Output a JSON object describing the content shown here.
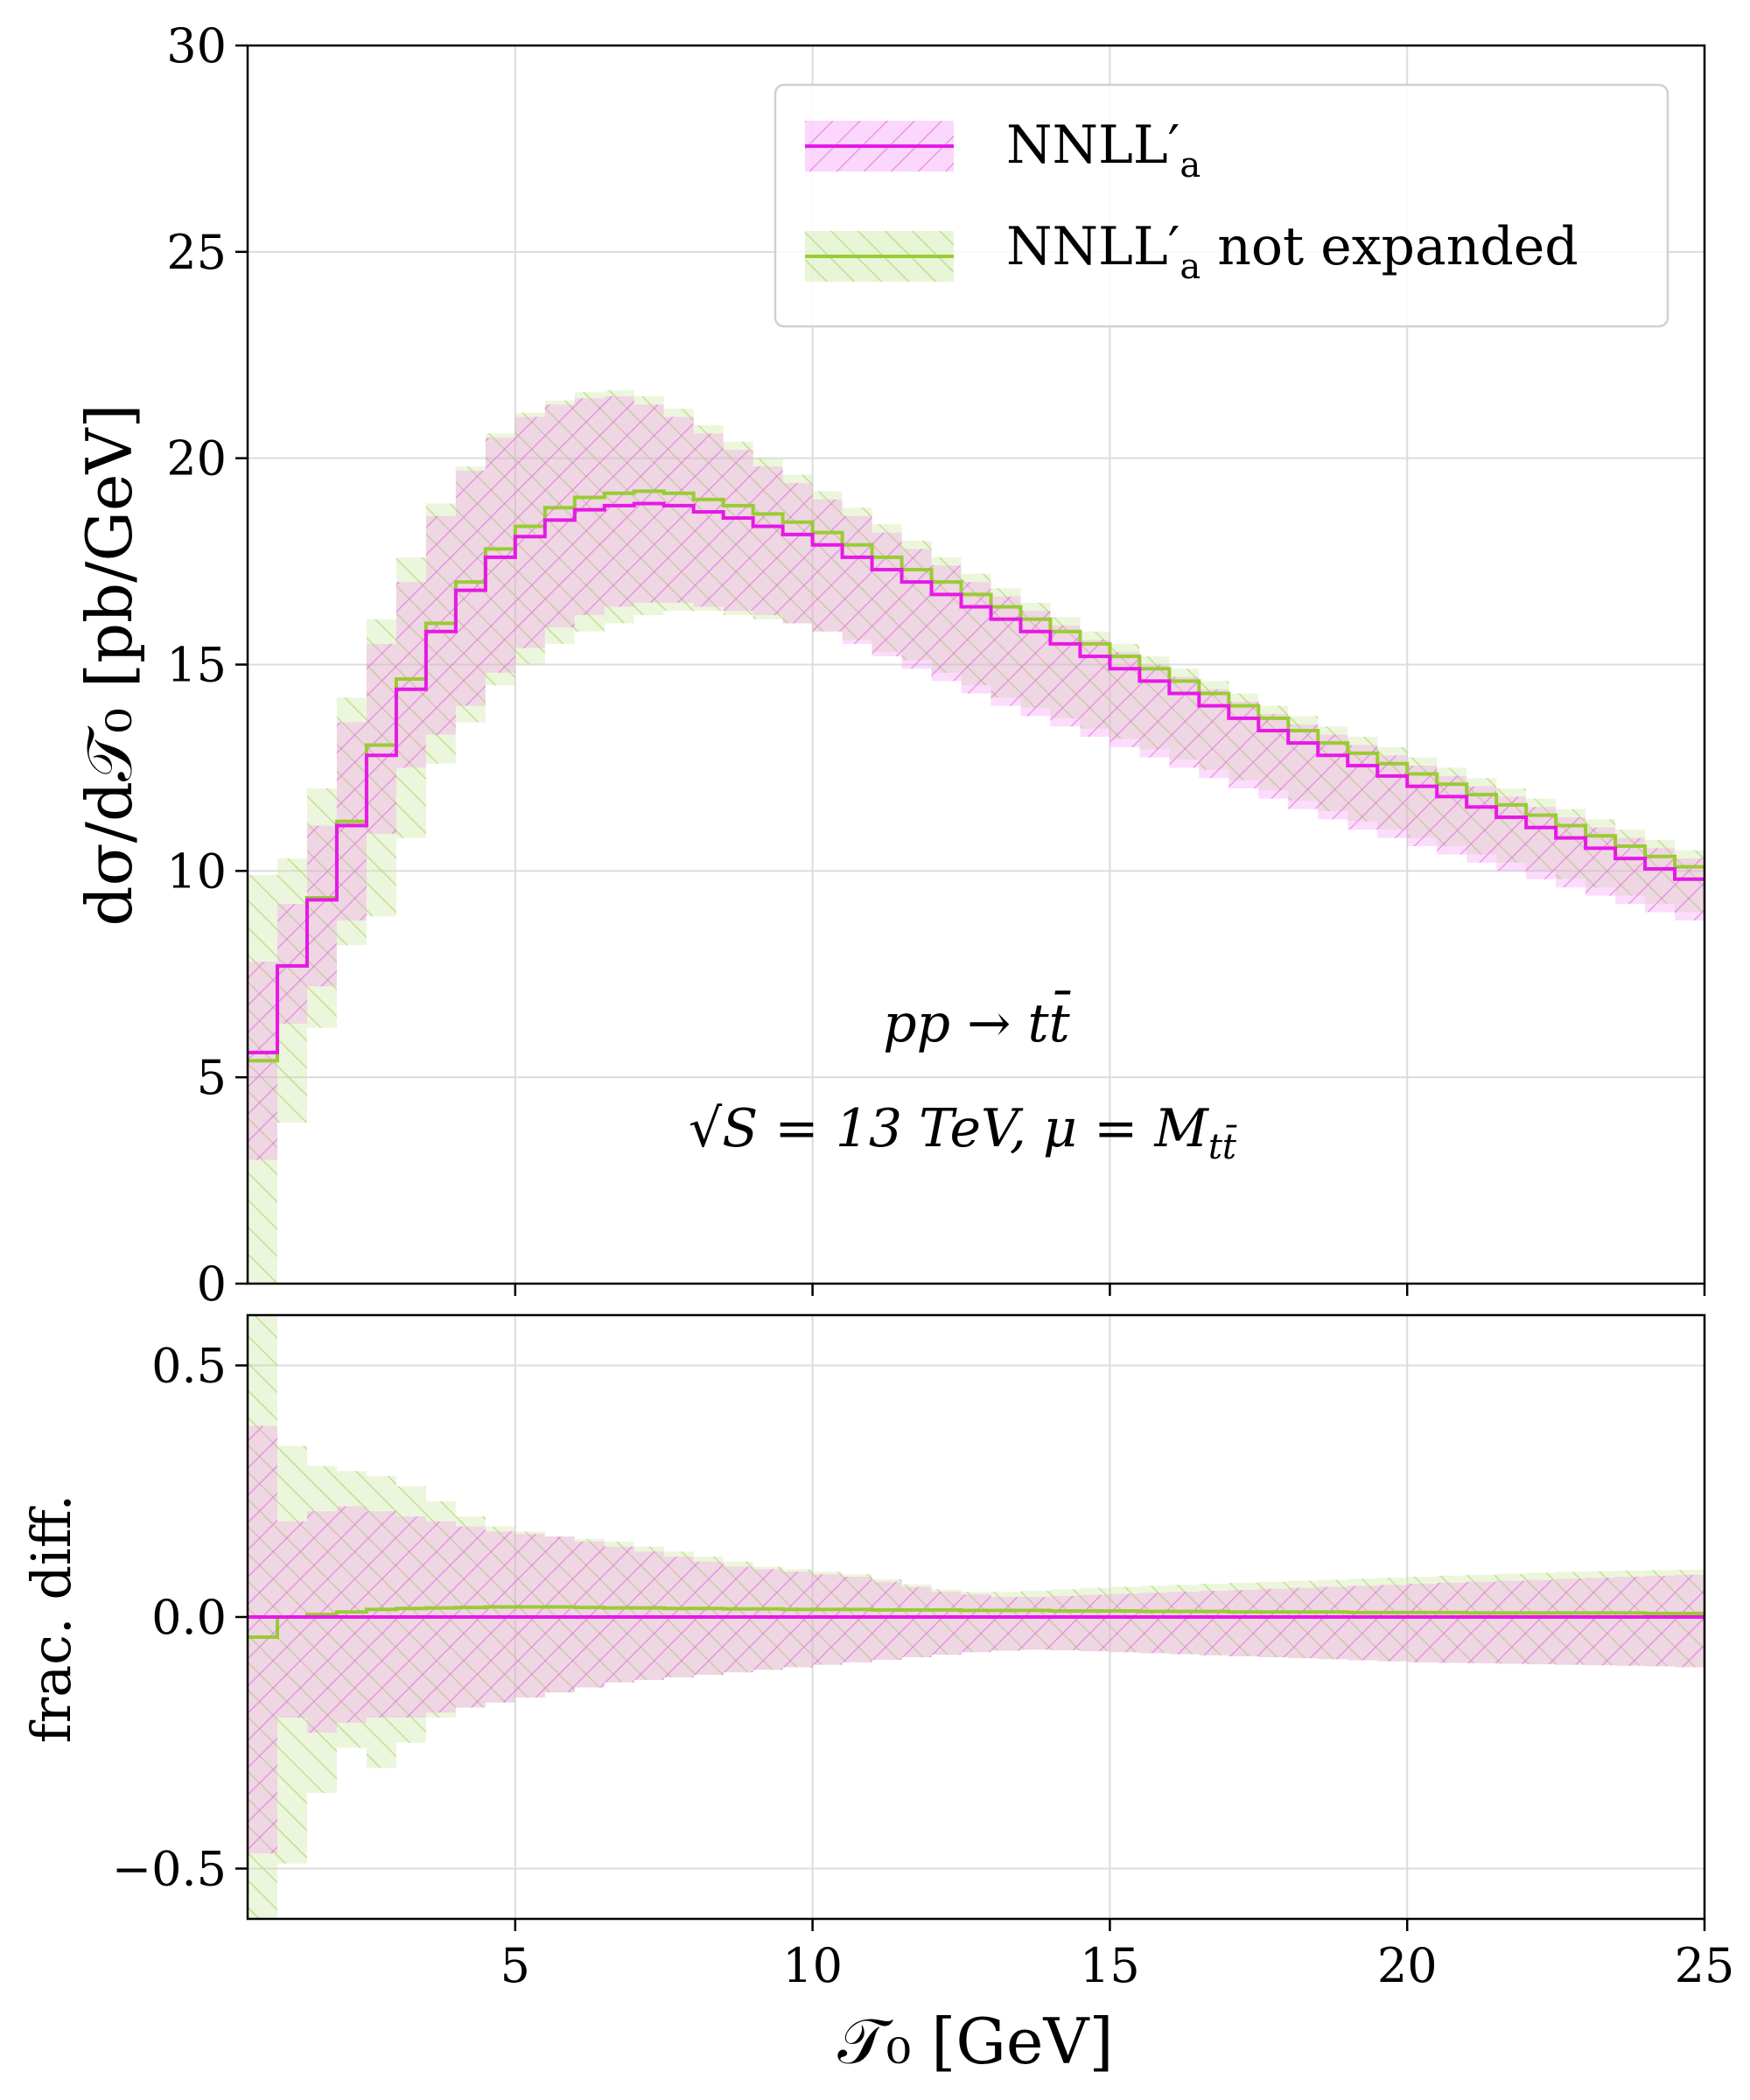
{
  "chart_data": [
    {
      "type": "line",
      "panel": "main",
      "ylabel": "dσ/d𝒯₀   [pb/GeV]",
      "xlim": [
        0.5,
        25
      ],
      "ylim": [
        0,
        30
      ],
      "yticks": [
        0,
        5,
        10,
        15,
        20,
        25,
        30
      ],
      "xticks": [
        5,
        10,
        15,
        20,
        25
      ],
      "grid": true,
      "legend_position": "top-right",
      "annotation_line1": "pp → tt̄",
      "annotation_line2": "√S = 13 TeV, μ = M",
      "annotation_line2_sub": "tt̄",
      "bin_edges": [
        0.5,
        1.0,
        1.5,
        2.0,
        2.5,
        3.0,
        3.5,
        4.0,
        4.5,
        5.0,
        5.5,
        6.0,
        6.5,
        7.0,
        7.5,
        8.0,
        8.5,
        9.0,
        9.5,
        10.0,
        10.5,
        11.0,
        11.5,
        12.0,
        12.5,
        13.0,
        13.5,
        14.0,
        14.5,
        15.0,
        15.5,
        16.0,
        16.5,
        17.0,
        17.5,
        18.0,
        18.5,
        19.0,
        19.5,
        20.0,
        20.5,
        21.0,
        21.5,
        22.0,
        22.5,
        23.0,
        23.5,
        24.0,
        24.5,
        25.0
      ],
      "series": [
        {
          "name": "NNLL′",
          "name_sub": "a",
          "color": "#e619e6",
          "band_color": "#f48cf4",
          "central": [
            5.6,
            7.7,
            9.3,
            11.1,
            12.8,
            14.4,
            15.8,
            16.8,
            17.6,
            18.1,
            18.5,
            18.75,
            18.85,
            18.9,
            18.85,
            18.7,
            18.55,
            18.35,
            18.15,
            17.9,
            17.6,
            17.3,
            17.0,
            16.7,
            16.4,
            16.1,
            15.8,
            15.5,
            15.2,
            14.9,
            14.6,
            14.3,
            14.0,
            13.7,
            13.4,
            13.1,
            12.8,
            12.55,
            12.3,
            12.05,
            11.8,
            11.55,
            11.3,
            11.05,
            10.8,
            10.55,
            10.3,
            10.05,
            9.8
          ],
          "lower": [
            3.0,
            6.3,
            7.2,
            8.8,
            10.9,
            12.5,
            13.3,
            14.0,
            14.8,
            15.4,
            15.9,
            16.2,
            16.4,
            16.5,
            16.5,
            16.4,
            16.3,
            16.2,
            16.0,
            15.8,
            15.5,
            15.2,
            14.9,
            14.6,
            14.3,
            14.0,
            13.75,
            13.5,
            13.25,
            13.0,
            12.75,
            12.5,
            12.25,
            12.0,
            11.75,
            11.5,
            11.25,
            11.0,
            10.8,
            10.6,
            10.4,
            10.2,
            10.0,
            9.8,
            9.6,
            9.4,
            9.2,
            9.0,
            8.8
          ],
          "upper": [
            7.8,
            9.2,
            11.1,
            13.6,
            15.5,
            17.0,
            18.6,
            19.7,
            20.5,
            21.0,
            21.3,
            21.45,
            21.5,
            21.3,
            21.0,
            20.6,
            20.2,
            19.8,
            19.4,
            19.0,
            18.6,
            18.2,
            17.8,
            17.4,
            17.0,
            16.65,
            16.3,
            15.95,
            15.6,
            15.3,
            15.0,
            14.7,
            14.4,
            14.1,
            13.8,
            13.55,
            13.3,
            13.05,
            12.8,
            12.55,
            12.3,
            12.05,
            11.8,
            11.55,
            11.3,
            11.05,
            10.8,
            10.55,
            10.3
          ]
        },
        {
          "name": "NNLL′",
          "name_sub": "a",
          "name_suffix": " not expanded",
          "color": "#99cc33",
          "band_color": "#c8e69a",
          "central": [
            5.4,
            7.7,
            9.35,
            11.2,
            13.05,
            14.65,
            16.0,
            17.0,
            17.8,
            18.35,
            18.8,
            19.05,
            19.15,
            19.2,
            19.15,
            19.0,
            18.85,
            18.65,
            18.45,
            18.2,
            17.9,
            17.6,
            17.3,
            17.0,
            16.7,
            16.4,
            16.1,
            15.8,
            15.5,
            15.2,
            14.9,
            14.6,
            14.3,
            14.0,
            13.7,
            13.4,
            13.1,
            12.85,
            12.6,
            12.35,
            12.1,
            11.85,
            11.6,
            11.35,
            11.1,
            10.85,
            10.6,
            10.35,
            10.1
          ],
          "lower": [
            0.0,
            3.9,
            6.2,
            8.2,
            8.9,
            10.8,
            12.6,
            13.6,
            14.5,
            15.0,
            15.5,
            15.8,
            16.0,
            16.2,
            16.3,
            16.3,
            16.2,
            16.1,
            16.0,
            15.8,
            15.6,
            15.3,
            15.1,
            14.8,
            14.5,
            14.2,
            13.95,
            13.7,
            13.45,
            13.2,
            12.95,
            12.7,
            12.45,
            12.2,
            11.95,
            11.7,
            11.45,
            11.2,
            11.0,
            10.8,
            10.6,
            10.4,
            10.2,
            10.0,
            9.8,
            9.6,
            9.4,
            9.2,
            9.0
          ],
          "upper": [
            9.9,
            10.3,
            12.0,
            14.2,
            16.1,
            17.6,
            18.9,
            19.8,
            20.6,
            21.1,
            21.4,
            21.6,
            21.65,
            21.5,
            21.2,
            20.8,
            20.4,
            20.0,
            19.6,
            19.2,
            18.8,
            18.4,
            18.0,
            17.6,
            17.2,
            16.85,
            16.5,
            16.15,
            15.8,
            15.5,
            15.2,
            14.9,
            14.6,
            14.3,
            14.0,
            13.75,
            13.5,
            13.25,
            13.0,
            12.75,
            12.5,
            12.25,
            12.0,
            11.75,
            11.5,
            11.25,
            11.0,
            10.75,
            10.5
          ]
        }
      ]
    },
    {
      "type": "line",
      "panel": "ratio",
      "xlabel": "𝒯₀   [GeV]",
      "ylabel": "frac.  diff.",
      "xlim": [
        0.5,
        25
      ],
      "ylim": [
        -0.6,
        0.6
      ],
      "yticks": [
        -0.5,
        0.0,
        0.5
      ],
      "ytick_labels": [
        "−0.5",
        "0.0",
        "0.5"
      ],
      "xticks": [
        5,
        10,
        15,
        20,
        25
      ],
      "xtick_labels": [
        "5",
        "10",
        "15",
        "20",
        "25"
      ],
      "grid": true,
      "bin_edges": [
        0.5,
        1.0,
        1.5,
        2.0,
        2.5,
        3.0,
        3.5,
        4.0,
        4.5,
        5.0,
        5.5,
        6.0,
        6.5,
        7.0,
        7.5,
        8.0,
        8.5,
        9.0,
        9.5,
        10.0,
        10.5,
        11.0,
        11.5,
        12.0,
        12.5,
        13.0,
        13.5,
        14.0,
        14.5,
        15.0,
        15.5,
        16.0,
        16.5,
        17.0,
        17.5,
        18.0,
        18.5,
        19.0,
        19.5,
        20.0,
        20.5,
        21.0,
        21.5,
        22.0,
        22.5,
        23.0,
        23.5,
        24.0,
        24.5,
        25.0
      ],
      "series": [
        {
          "name": "NNLL′ a",
          "color": "#e619e6",
          "band_color": "#f48cf4",
          "central": [
            0,
            0,
            0,
            0,
            0,
            0,
            0,
            0,
            0,
            0,
            0,
            0,
            0,
            0,
            0,
            0,
            0,
            0,
            0,
            0,
            0,
            0,
            0,
            0,
            0,
            0,
            0,
            0,
            0,
            0,
            0,
            0,
            0,
            0,
            0,
            0,
            0,
            0,
            0,
            0,
            0,
            0,
            0,
            0,
            0,
            0,
            0,
            0,
            0
          ],
          "lower": [
            -0.47,
            -0.2,
            -0.23,
            -0.21,
            -0.2,
            -0.2,
            -0.19,
            -0.18,
            -0.17,
            -0.16,
            -0.15,
            -0.14,
            -0.13,
            -0.125,
            -0.12,
            -0.115,
            -0.11,
            -0.105,
            -0.1,
            -0.095,
            -0.09,
            -0.085,
            -0.08,
            -0.075,
            -0.07,
            -0.067,
            -0.065,
            -0.066,
            -0.068,
            -0.07,
            -0.072,
            -0.074,
            -0.076,
            -0.078,
            -0.08,
            -0.082,
            -0.084,
            -0.086,
            -0.088,
            -0.09,
            -0.091,
            -0.092,
            -0.093,
            -0.094,
            -0.095,
            -0.096,
            -0.097,
            -0.098,
            -0.1
          ],
          "upper": [
            0.38,
            0.19,
            0.21,
            0.22,
            0.21,
            0.2,
            0.19,
            0.18,
            0.17,
            0.165,
            0.16,
            0.15,
            0.14,
            0.13,
            0.12,
            0.11,
            0.1,
            0.095,
            0.09,
            0.085,
            0.08,
            0.07,
            0.06,
            0.05,
            0.045,
            0.04,
            0.04,
            0.042,
            0.044,
            0.046,
            0.048,
            0.05,
            0.052,
            0.054,
            0.056,
            0.058,
            0.06,
            0.062,
            0.064,
            0.066,
            0.068,
            0.07,
            0.072,
            0.074,
            0.076,
            0.078,
            0.08,
            0.082,
            0.084
          ]
        },
        {
          "name": "NNLL′ a not expanded",
          "color": "#99cc33",
          "band_color": "#c8e69a",
          "central": [
            -0.04,
            0.0,
            0.005,
            0.01,
            0.015,
            0.017,
            0.018,
            0.019,
            0.02,
            0.02,
            0.02,
            0.019,
            0.018,
            0.018,
            0.017,
            0.017,
            0.016,
            0.016,
            0.015,
            0.015,
            0.015,
            0.014,
            0.014,
            0.014,
            0.013,
            0.013,
            0.013,
            0.012,
            0.012,
            0.012,
            0.011,
            0.011,
            0.011,
            0.01,
            0.01,
            0.01,
            0.01,
            0.009,
            0.009,
            0.009,
            0.009,
            0.008,
            0.008,
            0.008,
            0.008,
            0.008,
            0.008,
            0.007,
            0.007
          ],
          "lower": [
            -0.6,
            -0.49,
            -0.35,
            -0.26,
            -0.3,
            -0.25,
            -0.2,
            -0.18,
            -0.17,
            -0.16,
            -0.15,
            -0.14,
            -0.13,
            -0.125,
            -0.12,
            -0.115,
            -0.11,
            -0.105,
            -0.1,
            -0.095,
            -0.09,
            -0.085,
            -0.08,
            -0.075,
            -0.07,
            -0.067,
            -0.065,
            -0.066,
            -0.068,
            -0.07,
            -0.072,
            -0.074,
            -0.076,
            -0.078,
            -0.08,
            -0.082,
            -0.084,
            -0.086,
            -0.088,
            -0.09,
            -0.091,
            -0.092,
            -0.093,
            -0.094,
            -0.095,
            -0.096,
            -0.097,
            -0.098,
            -0.1
          ],
          "upper": [
            0.6,
            0.34,
            0.3,
            0.29,
            0.28,
            0.26,
            0.23,
            0.2,
            0.18,
            0.17,
            0.16,
            0.155,
            0.15,
            0.14,
            0.13,
            0.12,
            0.11,
            0.1,
            0.095,
            0.09,
            0.085,
            0.075,
            0.065,
            0.055,
            0.05,
            0.05,
            0.052,
            0.055,
            0.058,
            0.06,
            0.062,
            0.064,
            0.066,
            0.068,
            0.07,
            0.072,
            0.074,
            0.076,
            0.078,
            0.08,
            0.082,
            0.084,
            0.086,
            0.088,
            0.09,
            0.091,
            0.092,
            0.093,
            0.094
          ]
        }
      ]
    }
  ]
}
